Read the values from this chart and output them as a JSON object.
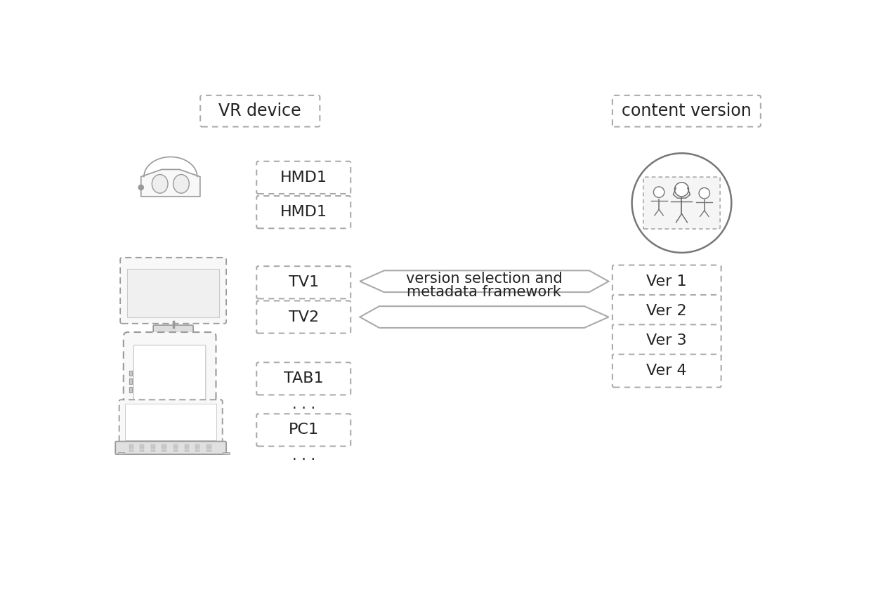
{
  "bg_color": "#ffffff",
  "vr_device_label": "VR device",
  "content_version_label": "content version",
  "device_boxes": [
    "HMD1",
    "HMD1",
    "TV1",
    "TV2",
    "TAB1",
    "PC1"
  ],
  "version_boxes": [
    "Ver 1",
    "Ver 2",
    "Ver 3",
    "Ver 4"
  ],
  "arrow_label_line1": "version selection and",
  "arrow_label_line2": "metadata framework",
  "dots_label": ". . .",
  "text_color": "#222222",
  "box_edge_color": "#aaaaaa",
  "box_edge_width": 1.5,
  "arrow_color": "#aaaaaa",
  "icon_color": "#999999",
  "icon_face": "#f8f8f8"
}
